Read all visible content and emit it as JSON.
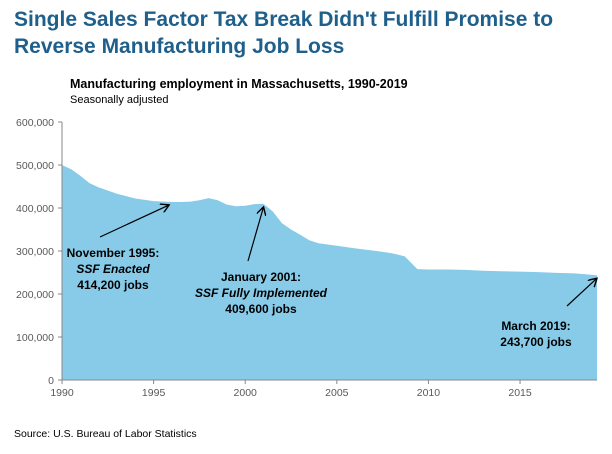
{
  "title": "Single Sales Factor Tax Break Didn't Fulfill Promise to Reverse Manufacturing Job Loss",
  "source": "Source: U.S. Bureau of Labor Statistics",
  "chart_data": {
    "type": "area",
    "title": "Manufacturing employment in Massachusetts, 1990-2019",
    "subtitle": "Seasonally adjusted",
    "xlabel": "",
    "ylabel": "",
    "xlim": [
      1990,
      2019.2
    ],
    "ylim": [
      0,
      600000
    ],
    "x_ticks": [
      "1990",
      "1995",
      "2000",
      "2005",
      "2010",
      "2015"
    ],
    "y_ticks": [
      "0",
      "100,000",
      "200,000",
      "300,000",
      "400,000",
      "500,000",
      "600,000"
    ],
    "grid": false,
    "color": "#87cbe9",
    "x": [
      1990,
      1990.5,
      1991,
      1991.5,
      1992,
      1993,
      1994,
      1995,
      1995.85,
      1996.5,
      1997,
      1997.5,
      1998,
      1998.5,
      1999,
      1999.5,
      2000,
      2000.5,
      2001.0,
      2001.5,
      2002,
      2002.5,
      2003,
      2003.5,
      2004,
      2005,
      2006,
      2007,
      2008,
      2008.7,
      2009,
      2009.4,
      2010,
      2011,
      2012,
      2013,
      2014,
      2015,
      2016,
      2017,
      2018,
      2019.2
    ],
    "y": [
      500000,
      490000,
      475000,
      458000,
      448000,
      433000,
      422000,
      416000,
      414200,
      414000,
      415000,
      418000,
      423000,
      418000,
      408000,
      404000,
      405000,
      409000,
      409600,
      392000,
      365000,
      350000,
      338000,
      325000,
      318000,
      312000,
      306000,
      301000,
      295000,
      288000,
      275000,
      258000,
      257000,
      257000,
      256000,
      254000,
      253000,
      252000,
      251000,
      249000,
      248000,
      243700
    ],
    "annotations": [
      {
        "lines": [
          "November 1995:",
          "SSF Enacted",
          "414,200 jobs"
        ],
        "x": 1995.85,
        "y": 414200
      },
      {
        "lines": [
          "January 2001:",
          "SSF Fully Implemented",
          "409,600 jobs"
        ],
        "x": 2001.0,
        "y": 409600
      },
      {
        "lines": [
          "March 2019:",
          "243,700 jobs"
        ],
        "x": 2019.2,
        "y": 243700
      }
    ]
  }
}
